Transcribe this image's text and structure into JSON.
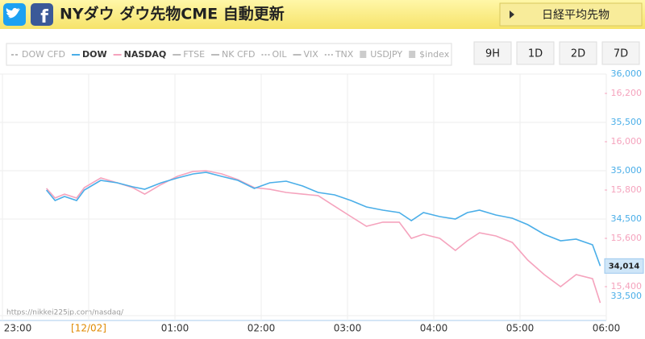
{
  "header": {
    "title": "NYダウ ダウ先物CME 自動更新",
    "button": "日経平均先物"
  },
  "ranges": [
    "9H",
    "1D",
    "2D",
    "7D"
  ],
  "legend_extra": [
    "DOW CFD",
    "FTSE",
    "NK CFD",
    "OIL",
    "VIX",
    "TNX",
    "USDJPY",
    "$index"
  ],
  "watermark": "https://nikkei225jp.com/nasdaq/",
  "chart_data": {
    "type": "line",
    "xlim": [
      0,
      7
    ],
    "xticks": [
      {
        "value": 0,
        "label": "23:00"
      },
      {
        "value": 1,
        "label": "[12/02]"
      },
      {
        "value": 2,
        "label": "01:00"
      },
      {
        "value": 3,
        "label": "02:00"
      },
      {
        "value": 4,
        "label": "03:00"
      },
      {
        "value": 5,
        "label": "04:00"
      },
      {
        "value": 6,
        "label": "05:00"
      },
      {
        "value": 7,
        "label": "06:00"
      }
    ],
    "ylim": [
      33500,
      36000
    ],
    "yticks": [
      {
        "value": 33500,
        "label": "33,500"
      },
      {
        "value": 34500,
        "label": "34,500"
      },
      {
        "value": 35000,
        "label": "35,000"
      },
      {
        "value": 35500,
        "label": "35,500"
      },
      {
        "value": 36000,
        "label": "36,000"
      }
    ],
    "y2lim": [
      15280,
      16280
    ],
    "y2ticks": [
      {
        "value": 15400,
        "label": "15,400"
      },
      {
        "value": 15600,
        "label": "15,600"
      },
      {
        "value": 15800,
        "label": "15,800"
      },
      {
        "value": 16000,
        "label": "16,000"
      },
      {
        "value": 16200,
        "label": "16,200"
      }
    ],
    "grid": true,
    "x": [
      0.51,
      0.61,
      0.72,
      0.86,
      0.95,
      1.14,
      1.33,
      1.51,
      1.65,
      1.84,
      2.03,
      2.21,
      2.36,
      2.54,
      2.73,
      2.92,
      3.1,
      3.29,
      3.48,
      3.66,
      3.85,
      4.04,
      4.22,
      4.41,
      4.6,
      4.74,
      4.88,
      5.07,
      5.25,
      5.39,
      5.53,
      5.72,
      5.91,
      6.09,
      6.28,
      6.47,
      6.65,
      6.84,
      6.93
    ],
    "series": [
      {
        "name": "DOW",
        "color": "#4aaee8",
        "values": [
          34800,
          34692,
          34733,
          34692,
          34800,
          34900,
          34875,
          34833,
          34808,
          34875,
          34925,
          34967,
          34983,
          34942,
          34900,
          34817,
          34875,
          34892,
          34842,
          34775,
          34750,
          34692,
          34625,
          34592,
          34567,
          34483,
          34567,
          34525,
          34500,
          34567,
          34592,
          34542,
          34508,
          34442,
          34342,
          34275,
          34292,
          34233,
          34014
        ],
        "value_labels": [
          null,
          null,
          null,
          null,
          null,
          null,
          null,
          null,
          null,
          null,
          null,
          null,
          null,
          null,
          null,
          null,
          null,
          null,
          null,
          null,
          null,
          null,
          null,
          null,
          null,
          null,
          null,
          null,
          null,
          null,
          null,
          null,
          null,
          null,
          null,
          null,
          null,
          null,
          "34,014"
        ]
      },
      {
        "name": "NASDAQ",
        "color": "#f5a3bd",
        "axis": "y2",
        "values": [
          15807,
          15767,
          15783,
          15767,
          15810,
          15850,
          15830,
          15810,
          15783,
          15823,
          15857,
          15877,
          15880,
          15867,
          15843,
          15810,
          15803,
          15790,
          15783,
          15777,
          15733,
          15690,
          15650,
          15667,
          15667,
          15600,
          15617,
          15600,
          15550,
          15590,
          15623,
          15610,
          15583,
          15510,
          15450,
          15400,
          15450,
          15433,
          15333
        ]
      }
    ]
  }
}
